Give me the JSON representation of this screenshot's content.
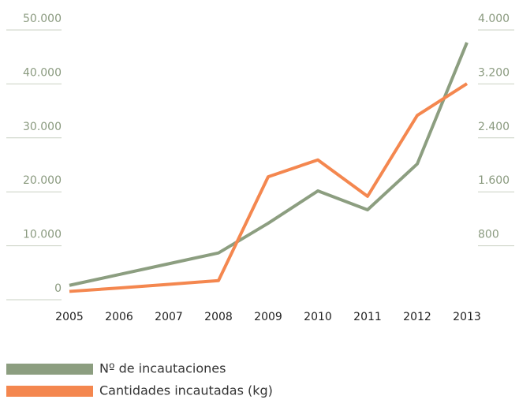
{
  "chart_data": {
    "type": "line",
    "categories": [
      "2005",
      "2006",
      "2007",
      "2008",
      "2009",
      "2010",
      "2011",
      "2012",
      "2013"
    ],
    "series": [
      {
        "name": "Nº de incautaciones",
        "color": "#8c9e80",
        "values": [
          1500,
          3500,
          5500,
          7500,
          13000,
          19000,
          15500,
          24000,
          46500
        ]
      },
      {
        "name": "Cantidades incautadas (kg)",
        "color": "#f4874f",
        "axis": "y2",
        "values": [
          30,
          80,
          135,
          190,
          1730,
          1980,
          1440,
          2640,
          3110
        ]
      }
    ],
    "ylim": [
      0,
      50000
    ],
    "yticks": [
      0,
      {
        "value": 10000,
        "label": "10.000"
      },
      {
        "value": 20000,
        "label": "20.000"
      },
      {
        "value": 30000,
        "label": "30.000"
      },
      {
        "value": 40000,
        "label": "40.000"
      },
      {
        "value": 50000,
        "label": "50.000"
      }
    ],
    "y2lim": [
      0,
      4000
    ],
    "y2ticks": [
      {
        "value": 800,
        "label": "800"
      },
      {
        "value": 1600,
        "label": "1.600"
      },
      {
        "value": 2400,
        "label": "2.400"
      },
      {
        "value": 3200,
        "label": "3.200"
      },
      {
        "value": 4000,
        "label": "4.000"
      }
    ],
    "tick_color": "#8a9a7f"
  }
}
